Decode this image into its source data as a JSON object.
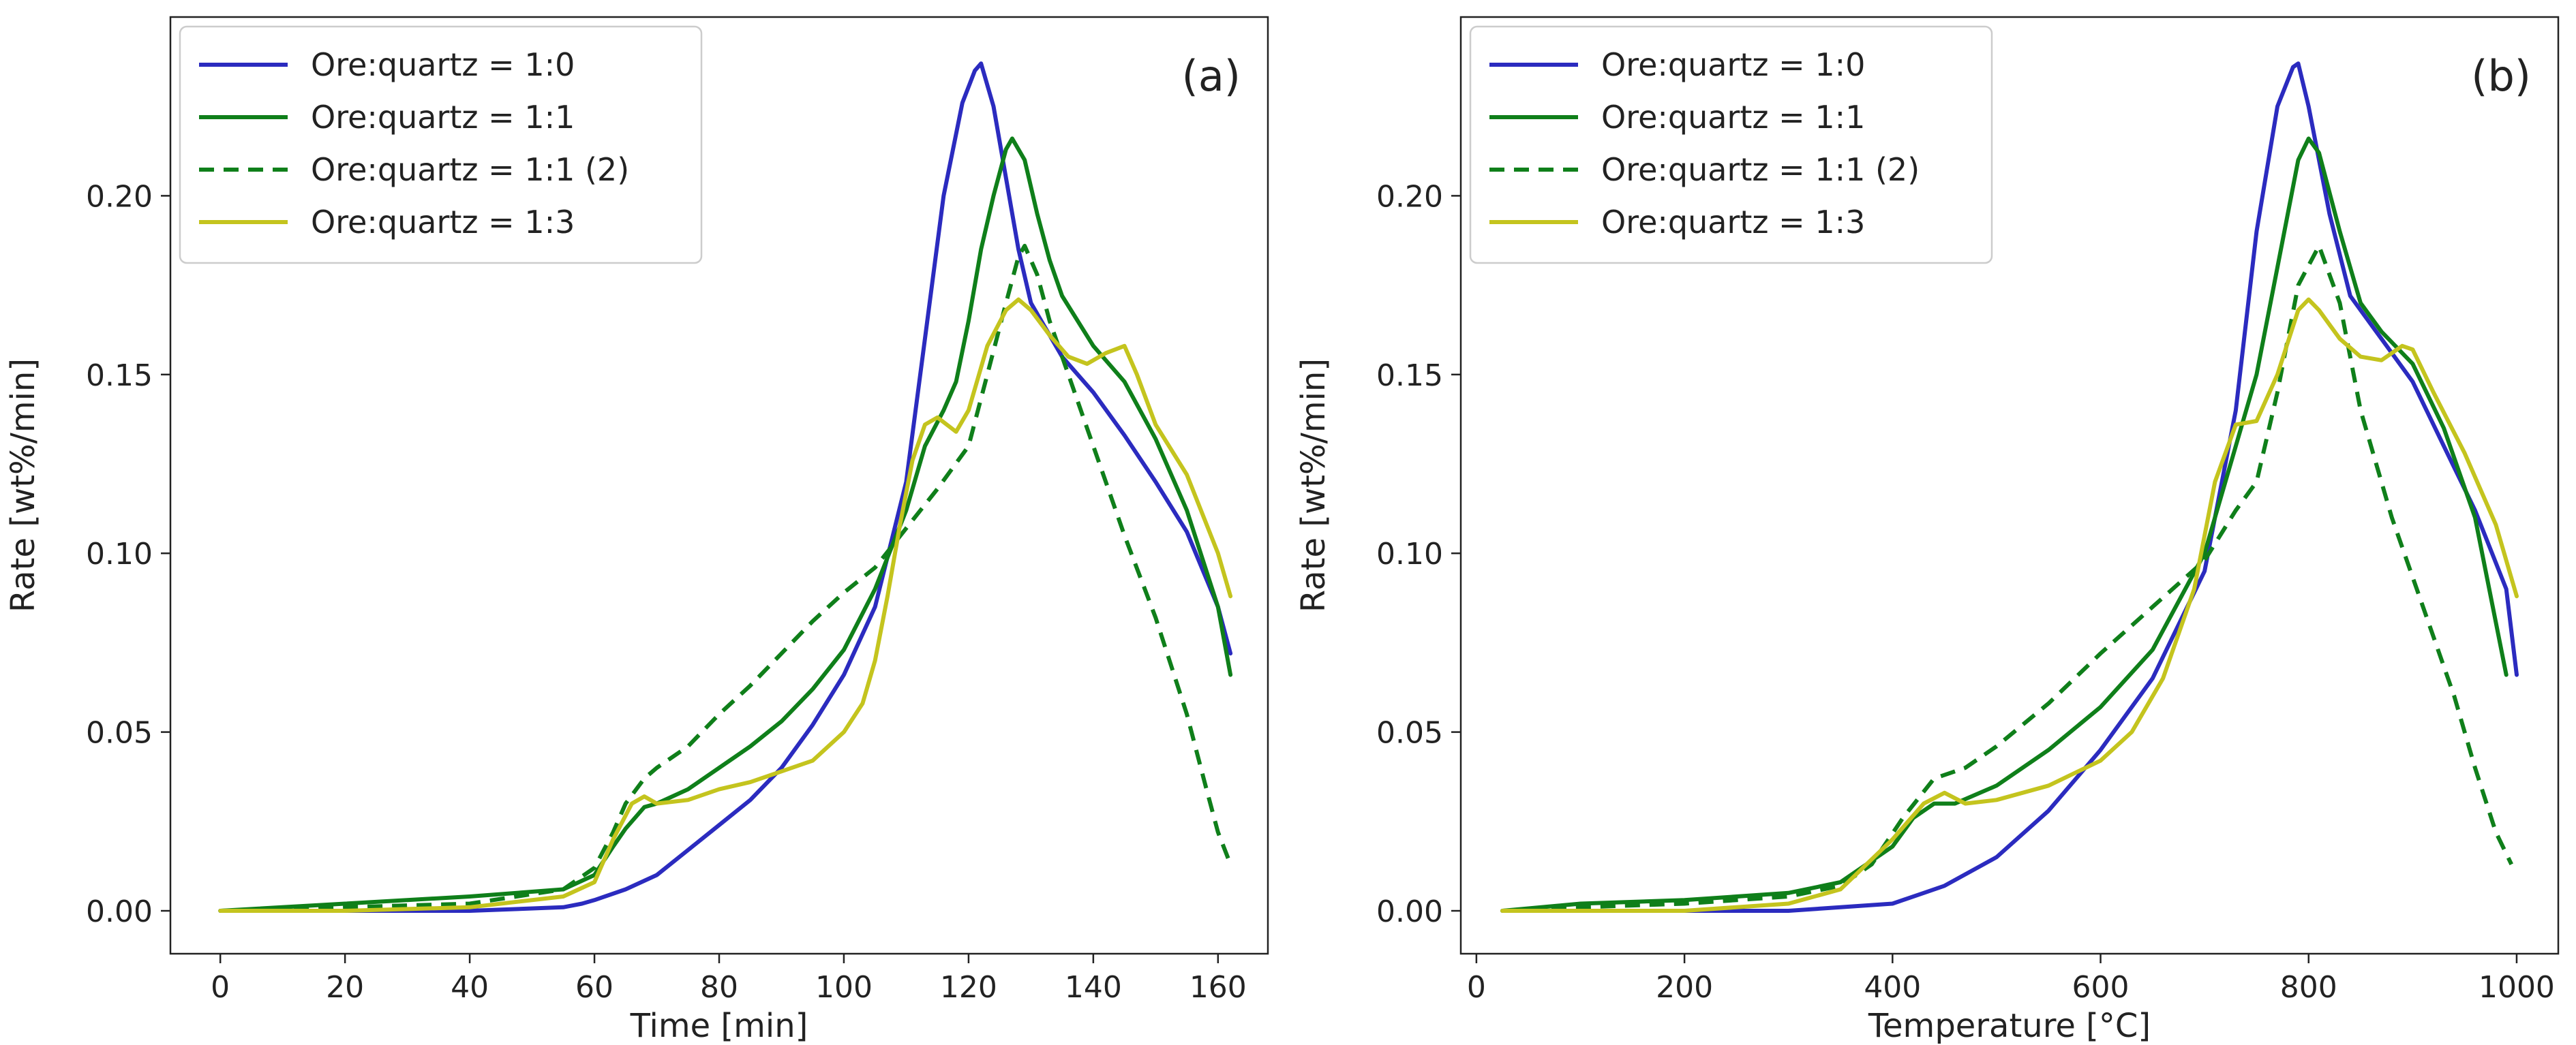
{
  "colors": {
    "ore_1_0": "#2b2bbf",
    "ore_1_1": "#0f7f1a",
    "ore_1_3": "#c4c41e"
  },
  "chart_data": [
    {
      "type": "line",
      "panel_label": "(a)",
      "xlabel": "Time [min]",
      "ylabel": "Rate [wt%/min]",
      "xlim": [
        -8,
        168
      ],
      "ylim": [
        -0.012,
        0.25
      ],
      "xticks": [
        0,
        20,
        40,
        60,
        80,
        100,
        120,
        140,
        160
      ],
      "xtick_labels": [
        "0",
        "20",
        "40",
        "60",
        "80",
        "100",
        "120",
        "140",
        "160"
      ],
      "yticks": [
        0,
        0.05,
        0.1,
        0.15,
        0.2
      ],
      "ytick_labels": [
        "0.00",
        "0.05",
        "0.10",
        "0.15",
        "0.20"
      ],
      "legend_position": "top-left",
      "series": [
        {
          "name": "Ore:quartz = 1:0",
          "color": "#2b2bbf",
          "dash": "solid",
          "x": [
            0,
            20,
            40,
            55,
            58,
            60,
            65,
            70,
            75,
            80,
            85,
            90,
            95,
            100,
            105,
            110,
            113,
            116,
            119,
            121,
            122,
            124,
            126,
            128,
            130,
            135,
            140,
            145,
            150,
            155,
            160,
            162
          ],
          "y": [
            0,
            0,
            0,
            0.001,
            0.002,
            0.003,
            0.006,
            0.01,
            0.017,
            0.024,
            0.031,
            0.04,
            0.052,
            0.066,
            0.085,
            0.12,
            0.16,
            0.2,
            0.226,
            0.235,
            0.237,
            0.225,
            0.205,
            0.185,
            0.17,
            0.155,
            0.145,
            0.133,
            0.12,
            0.106,
            0.085,
            0.072
          ]
        },
        {
          "name": "Ore:quartz = 1:1",
          "color": "#0f7f1a",
          "dash": "solid",
          "x": [
            0,
            20,
            40,
            55,
            60,
            63,
            65,
            68,
            70,
            75,
            80,
            85,
            90,
            95,
            100,
            105,
            110,
            113,
            116,
            118,
            120,
            122,
            124,
            126,
            127,
            129,
            131,
            133,
            135,
            140,
            145,
            150,
            155,
            160,
            162
          ],
          "y": [
            0,
            0.002,
            0.004,
            0.006,
            0.01,
            0.018,
            0.023,
            0.029,
            0.03,
            0.034,
            0.04,
            0.046,
            0.053,
            0.062,
            0.073,
            0.09,
            0.112,
            0.13,
            0.14,
            0.148,
            0.165,
            0.185,
            0.2,
            0.213,
            0.216,
            0.21,
            0.195,
            0.182,
            0.172,
            0.158,
            0.148,
            0.132,
            0.112,
            0.085,
            0.066
          ]
        },
        {
          "name": "Ore:quartz = 1:1 (2)",
          "color": "#0f7f1a",
          "dash": "dashed",
          "x": [
            0,
            20,
            40,
            55,
            60,
            63,
            65,
            68,
            70,
            75,
            80,
            85,
            90,
            95,
            100,
            105,
            110,
            115,
            120,
            123,
            126,
            128,
            129,
            131,
            133,
            136,
            140,
            145,
            150,
            155,
            158,
            160,
            162
          ],
          "y": [
            0,
            0.001,
            0.002,
            0.006,
            0.012,
            0.022,
            0.03,
            0.037,
            0.04,
            0.046,
            0.055,
            0.063,
            0.072,
            0.081,
            0.089,
            0.096,
            0.107,
            0.118,
            0.13,
            0.15,
            0.17,
            0.183,
            0.186,
            0.178,
            0.165,
            0.15,
            0.13,
            0.105,
            0.082,
            0.055,
            0.035,
            0.022,
            0.013
          ]
        },
        {
          "name": "Ore:quartz = 1:3",
          "color": "#c4c41e",
          "dash": "solid",
          "x": [
            0,
            20,
            40,
            55,
            60,
            63,
            66,
            68,
            70,
            75,
            80,
            85,
            90,
            95,
            100,
            103,
            105,
            107,
            109,
            111,
            113,
            115,
            118,
            120,
            123,
            126,
            128,
            130,
            133,
            136,
            139,
            142,
            145,
            147,
            150,
            155,
            160,
            162
          ],
          "y": [
            0,
            0,
            0.001,
            0.004,
            0.008,
            0.02,
            0.03,
            0.032,
            0.03,
            0.031,
            0.034,
            0.036,
            0.039,
            0.042,
            0.05,
            0.058,
            0.07,
            0.088,
            0.108,
            0.126,
            0.136,
            0.138,
            0.134,
            0.14,
            0.158,
            0.168,
            0.171,
            0.168,
            0.161,
            0.155,
            0.153,
            0.156,
            0.158,
            0.15,
            0.136,
            0.122,
            0.1,
            0.088
          ]
        }
      ]
    },
    {
      "type": "line",
      "panel_label": "(b)",
      "xlabel": "Temperature [°C]",
      "ylabel": "Rate [wt%/min]",
      "xlim": [
        -15,
        1040
      ],
      "ylim": [
        -0.012,
        0.25
      ],
      "xticks": [
        0,
        200,
        400,
        600,
        800,
        1000
      ],
      "xtick_labels": [
        "0",
        "200",
        "400",
        "600",
        "800",
        "1000"
      ],
      "yticks": [
        0,
        0.05,
        0.1,
        0.15,
        0.2
      ],
      "ytick_labels": [
        "0.00",
        "0.05",
        "0.10",
        "0.15",
        "0.20"
      ],
      "legend_position": "top-left",
      "series": [
        {
          "name": "Ore:quartz = 1:0",
          "color": "#2b2bbf",
          "dash": "solid",
          "x": [
            25,
            100,
            200,
            300,
            350,
            400,
            430,
            450,
            500,
            550,
            600,
            650,
            700,
            730,
            750,
            770,
            785,
            790,
            800,
            820,
            840,
            870,
            900,
            930,
            960,
            990,
            1000
          ],
          "y": [
            0,
            0,
            0,
            0,
            0.001,
            0.002,
            0.005,
            0.007,
            0.015,
            0.028,
            0.045,
            0.065,
            0.095,
            0.14,
            0.19,
            0.225,
            0.236,
            0.237,
            0.225,
            0.195,
            0.172,
            0.16,
            0.148,
            0.13,
            0.112,
            0.09,
            0.066
          ]
        },
        {
          "name": "Ore:quartz = 1:1",
          "color": "#0f7f1a",
          "dash": "solid",
          "x": [
            25,
            100,
            200,
            300,
            350,
            400,
            420,
            440,
            460,
            500,
            550,
            600,
            650,
            700,
            730,
            750,
            770,
            790,
            800,
            810,
            830,
            850,
            870,
            900,
            930,
            960,
            990
          ],
          "y": [
            0,
            0.002,
            0.003,
            0.005,
            0.008,
            0.018,
            0.026,
            0.03,
            0.03,
            0.035,
            0.045,
            0.057,
            0.073,
            0.1,
            0.13,
            0.15,
            0.18,
            0.21,
            0.216,
            0.212,
            0.19,
            0.17,
            0.162,
            0.153,
            0.135,
            0.11,
            0.066
          ]
        },
        {
          "name": "Ore:quartz = 1:1 (2)",
          "color": "#0f7f1a",
          "dash": "dashed",
          "x": [
            25,
            100,
            200,
            300,
            350,
            380,
            410,
            440,
            470,
            500,
            550,
            600,
            650,
            700,
            730,
            750,
            770,
            790,
            810,
            830,
            850,
            880,
            910,
            940,
            960,
            980,
            995
          ],
          "y": [
            0,
            0.001,
            0.002,
            0.004,
            0.007,
            0.013,
            0.026,
            0.037,
            0.04,
            0.046,
            0.058,
            0.072,
            0.085,
            0.098,
            0.112,
            0.12,
            0.145,
            0.175,
            0.186,
            0.17,
            0.14,
            0.11,
            0.085,
            0.06,
            0.04,
            0.022,
            0.013
          ]
        },
        {
          "name": "Ore:quartz = 1:3",
          "color": "#c4c41e",
          "dash": "solid",
          "x": [
            25,
            100,
            200,
            300,
            350,
            400,
            430,
            450,
            470,
            500,
            550,
            600,
            630,
            660,
            690,
            710,
            730,
            750,
            770,
            790,
            800,
            810,
            830,
            850,
            870,
            890,
            900,
            920,
            950,
            980,
            1000
          ],
          "y": [
            0,
            0,
            0,
            0.002,
            0.006,
            0.02,
            0.03,
            0.033,
            0.03,
            0.031,
            0.035,
            0.042,
            0.05,
            0.065,
            0.09,
            0.12,
            0.136,
            0.137,
            0.15,
            0.168,
            0.171,
            0.168,
            0.16,
            0.155,
            0.154,
            0.158,
            0.157,
            0.145,
            0.128,
            0.108,
            0.088
          ]
        }
      ]
    }
  ]
}
